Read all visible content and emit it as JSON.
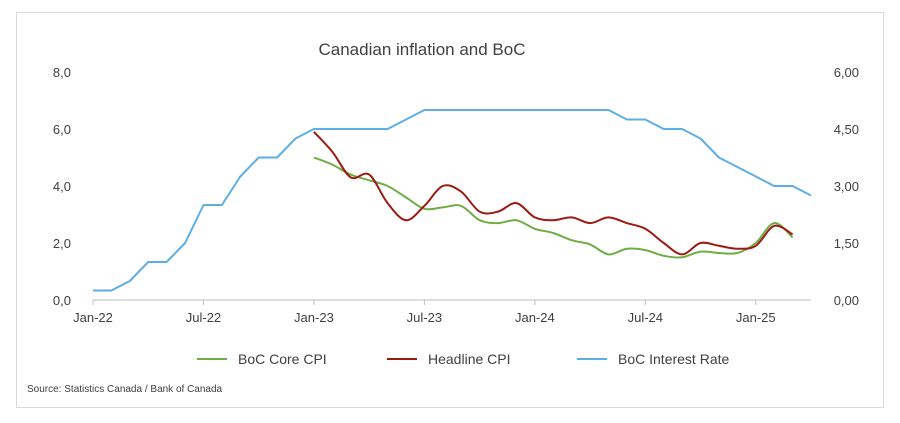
{
  "chart_data": {
    "type": "line",
    "title": "Canadian inflation and BoC",
    "source": "Source: Statistics Canada / Bank of Canada",
    "x_tick_labels": [
      "Jan-22",
      "Jul-22",
      "Jan-23",
      "Jul-23",
      "Jan-24",
      "Jul-24",
      "Jan-25"
    ],
    "x_range": [
      "Jan-22",
      "Apr-25"
    ],
    "y_left": {
      "range": [
        0,
        8
      ],
      "ticks": [
        "0,0",
        "2,0",
        "4,0",
        "6,0",
        "8,0"
      ]
    },
    "y_right": {
      "range": [
        0,
        6
      ],
      "ticks": [
        "0,00",
        "1,50",
        "3,00",
        "4,50",
        "6,00"
      ]
    },
    "grid": false,
    "legend_position": "bottom",
    "colors": {
      "core": "#70ad47",
      "headline": "#9b1b13",
      "rate": "#5eaee6",
      "axis": "#bfbfbf",
      "text": "#404040"
    },
    "series": [
      {
        "name": "BoC Core CPI",
        "axis": "left",
        "color": "#70ad47",
        "points": [
          [
            "Jan-23",
            5.0
          ],
          [
            "Feb-23",
            4.75
          ],
          [
            "Mar-23",
            4.4
          ],
          [
            "Apr-23",
            4.2
          ],
          [
            "May-23",
            4.0
          ],
          [
            "Jun-23",
            3.6
          ],
          [
            "Jul-23",
            3.2
          ],
          [
            "Aug-23",
            3.25
          ],
          [
            "Sep-23",
            3.3
          ],
          [
            "Oct-23",
            2.8
          ],
          [
            "Nov-23",
            2.7
          ],
          [
            "Dec-23",
            2.8
          ],
          [
            "Jan-24",
            2.5
          ],
          [
            "Feb-24",
            2.35
          ],
          [
            "Mar-24",
            2.1
          ],
          [
            "Apr-24",
            1.95
          ],
          [
            "May-24",
            1.6
          ],
          [
            "Jun-24",
            1.8
          ],
          [
            "Jul-24",
            1.75
          ],
          [
            "Aug-24",
            1.55
          ],
          [
            "Sep-24",
            1.5
          ],
          [
            "Oct-24",
            1.7
          ],
          [
            "Nov-24",
            1.65
          ],
          [
            "Dec-24",
            1.65
          ],
          [
            "Jan-25",
            2.0
          ],
          [
            "Feb-25",
            2.7
          ],
          [
            "Mar-25",
            2.2
          ]
        ]
      },
      {
        "name": "Headline CPI",
        "axis": "left",
        "color": "#9b1b13",
        "points": [
          [
            "Jan-23",
            5.9
          ],
          [
            "Feb-23",
            5.2
          ],
          [
            "Mar-23",
            4.3
          ],
          [
            "Apr-23",
            4.4
          ],
          [
            "May-23",
            3.4
          ],
          [
            "Jun-23",
            2.8
          ],
          [
            "Jul-23",
            3.3
          ],
          [
            "Aug-23",
            4.0
          ],
          [
            "Sep-23",
            3.8
          ],
          [
            "Oct-23",
            3.1
          ],
          [
            "Nov-23",
            3.1
          ],
          [
            "Dec-23",
            3.4
          ],
          [
            "Jan-24",
            2.9
          ],
          [
            "Feb-24",
            2.8
          ],
          [
            "Mar-24",
            2.9
          ],
          [
            "Apr-24",
            2.7
          ],
          [
            "May-24",
            2.9
          ],
          [
            "Jun-24",
            2.7
          ],
          [
            "Jul-24",
            2.5
          ],
          [
            "Aug-24",
            2.0
          ],
          [
            "Sep-24",
            1.6
          ],
          [
            "Oct-24",
            2.0
          ],
          [
            "Nov-24",
            1.9
          ],
          [
            "Dec-24",
            1.8
          ],
          [
            "Jan-25",
            1.9
          ],
          [
            "Feb-25",
            2.6
          ],
          [
            "Mar-25",
            2.3
          ]
        ]
      },
      {
        "name": "BoC Interest Rate",
        "axis": "right",
        "color": "#5eaee6",
        "points": [
          [
            "Jan-22",
            0.25
          ],
          [
            "Feb-22",
            0.25
          ],
          [
            "Mar-22",
            0.5
          ],
          [
            "Apr-22",
            1.0
          ],
          [
            "May-22",
            1.0
          ],
          [
            "Jun-22",
            1.5
          ],
          [
            "Jul-22",
            2.5
          ],
          [
            "Aug-22",
            2.5
          ],
          [
            "Sep-22",
            3.25
          ],
          [
            "Oct-22",
            3.75
          ],
          [
            "Nov-22",
            3.75
          ],
          [
            "Dec-22",
            4.25
          ],
          [
            "Jan-23",
            4.5
          ],
          [
            "Feb-23",
            4.5
          ],
          [
            "Mar-23",
            4.5
          ],
          [
            "Apr-23",
            4.5
          ],
          [
            "May-23",
            4.5
          ],
          [
            "Jun-23",
            4.75
          ],
          [
            "Jul-23",
            5.0
          ],
          [
            "Aug-23",
            5.0
          ],
          [
            "Sep-23",
            5.0
          ],
          [
            "Oct-23",
            5.0
          ],
          [
            "Nov-23",
            5.0
          ],
          [
            "Dec-23",
            5.0
          ],
          [
            "Jan-24",
            5.0
          ],
          [
            "Feb-24",
            5.0
          ],
          [
            "Mar-24",
            5.0
          ],
          [
            "Apr-24",
            5.0
          ],
          [
            "May-24",
            5.0
          ],
          [
            "Jun-24",
            4.75
          ],
          [
            "Jul-24",
            4.75
          ],
          [
            "Aug-24",
            4.5
          ],
          [
            "Sep-24",
            4.5
          ],
          [
            "Oct-24",
            4.25
          ],
          [
            "Nov-24",
            3.75
          ],
          [
            "Dec-24",
            3.5
          ],
          [
            "Jan-25",
            3.25
          ],
          [
            "Feb-25",
            3.0
          ],
          [
            "Mar-25",
            3.0
          ],
          [
            "Apr-25",
            2.75
          ]
        ]
      }
    ]
  }
}
